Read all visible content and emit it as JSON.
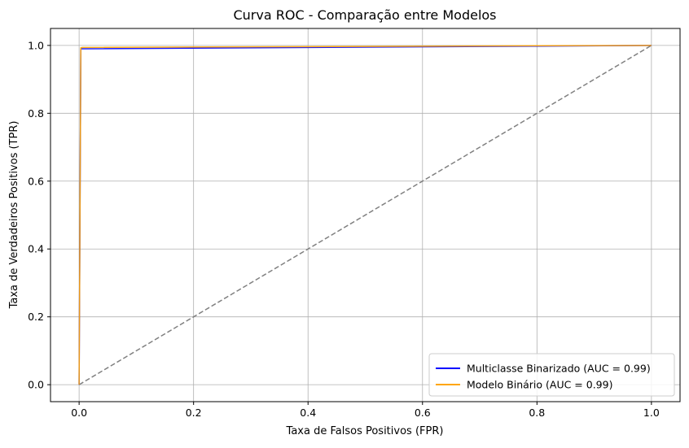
{
  "chart_data": {
    "type": "line",
    "title": "Curva ROC - Comparação entre Modelos",
    "xlabel": "Taxa de Falsos Positivos (FPR)",
    "ylabel": "Taxa de Verdadeiros Positivos (TPR)",
    "xlim": [
      -0.05,
      1.05
    ],
    "ylim": [
      -0.05,
      1.05
    ],
    "xticks": [
      0.0,
      0.2,
      0.4,
      0.6,
      0.8,
      1.0
    ],
    "yticks": [
      0.0,
      0.2,
      0.4,
      0.6,
      0.8,
      1.0
    ],
    "xtick_labels": [
      "0.0",
      "0.2",
      "0.4",
      "0.6",
      "0.8",
      "1.0"
    ],
    "ytick_labels": [
      "0.0",
      "0.2",
      "0.4",
      "0.6",
      "0.8",
      "1.0"
    ],
    "grid": true,
    "legend_position": "lower-right",
    "series": [
      {
        "name": "Multiclasse Binarizado (AUC = 0.99)",
        "color": "#0000ff",
        "x": [
          0.0,
          0.003,
          0.005,
          1.0
        ],
        "y": [
          0.0,
          0.99,
          0.99,
          1.0
        ]
      },
      {
        "name": "Modelo Binário (AUC = 0.99)",
        "color": "#ffa500",
        "x": [
          0.0,
          0.003,
          0.006,
          0.8,
          1.0
        ],
        "y": [
          0.0,
          0.993,
          0.994,
          0.999,
          1.0
        ]
      }
    ],
    "reference_line": {
      "x": [
        0,
        1
      ],
      "y": [
        0,
        1
      ],
      "color": "#808080",
      "style": "dashed"
    }
  }
}
